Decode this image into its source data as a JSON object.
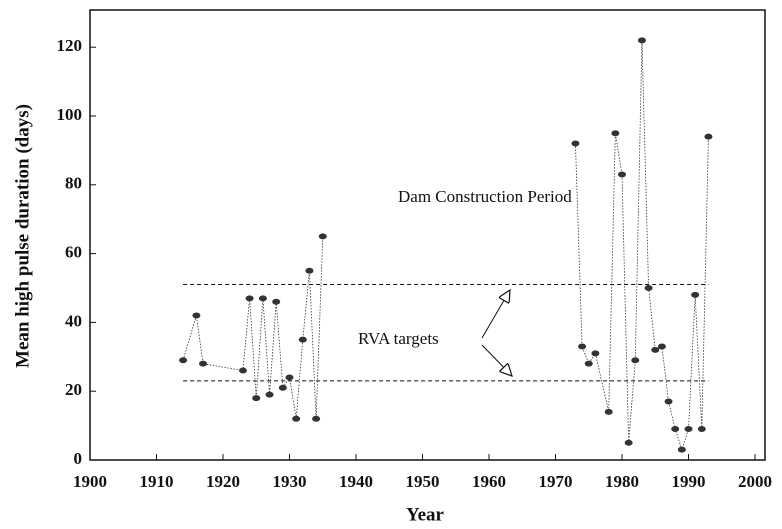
{
  "chart_data": {
    "type": "line",
    "x_label": "Year",
    "y_label": "Mean high pulse duration (days)",
    "xlim": [
      1900,
      2000
    ],
    "xticks": [
      1900,
      1910,
      1920,
      1930,
      1940,
      1950,
      1960,
      1970,
      1980,
      1990,
      2000
    ],
    "ylim": [
      0,
      130
    ],
    "yticks": [
      0,
      20,
      40,
      60,
      80,
      100,
      120
    ],
    "series": [
      {
        "color": "#333333",
        "x": [
          1914,
          1916,
          1917,
          1923,
          1924,
          1925,
          1926,
          1927,
          1928,
          1929,
          1930,
          1931,
          1932,
          1933,
          1934,
          1935
        ],
        "values": [
          29,
          42,
          28,
          26,
          47,
          18,
          47,
          19,
          46,
          21,
          24,
          12,
          35,
          55,
          12,
          65
        ]
      },
      {
        "color": "#333333",
        "x": [
          1973,
          1974,
          1975,
          1976,
          1978,
          1979,
          1980,
          1981,
          1982,
          1983,
          1984,
          1985,
          1986,
          1987,
          1988,
          1989,
          1990,
          1991,
          1992,
          1993
        ],
        "values": [
          92,
          33,
          28,
          31,
          14,
          95,
          83,
          5,
          29,
          122,
          50,
          32,
          33,
          17,
          9,
          3,
          9,
          48,
          9,
          94
        ]
      }
    ],
    "reference_lines": [
      {
        "value": 51,
        "xrange": [
          1914,
          1993
        ]
      },
      {
        "value": 23,
        "xrange": [
          1914,
          1993
        ]
      }
    ],
    "annotations": [
      "Dam Construction Period",
      "RVA targets"
    ]
  }
}
